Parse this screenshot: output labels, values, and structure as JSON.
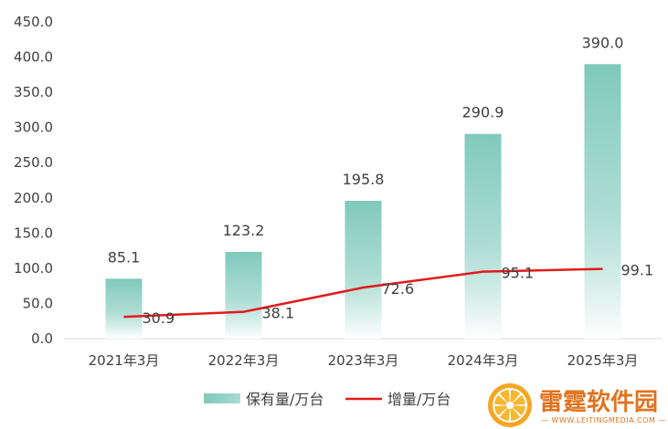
{
  "chart_data": {
    "type": "bar",
    "categories": [
      "2021年3月",
      "2022年3月",
      "2023年3月",
      "2024年3月",
      "2025年3月"
    ],
    "series": [
      {
        "name": "保有量/万台",
        "type": "bar",
        "values": [
          85.1,
          123.2,
          195.8,
          290.9,
          390.0
        ],
        "color": "#7fc9bb"
      },
      {
        "name": "增量/万台",
        "type": "line",
        "values": [
          30.9,
          38.1,
          72.6,
          95.1,
          99.1
        ],
        "color": "#e31a1c"
      }
    ],
    "ylim": [
      0,
      450
    ],
    "yticks": [
      "0.0",
      "50.0",
      "100.0",
      "150.0",
      "200.0",
      "250.0",
      "300.0",
      "350.0",
      "400.0",
      "450.0"
    ],
    "bar_labels": [
      "85.1",
      "123.2",
      "195.8",
      "290.9",
      "390.0"
    ],
    "line_labels": [
      "30.9",
      "38.1",
      "72.6",
      "95.1",
      "99.1"
    ],
    "grid": false,
    "legend_position": "bottom"
  },
  "watermark": {
    "title": "雷霆软件园",
    "url": "— WWW.LEITINGMEDIA.COM —"
  }
}
